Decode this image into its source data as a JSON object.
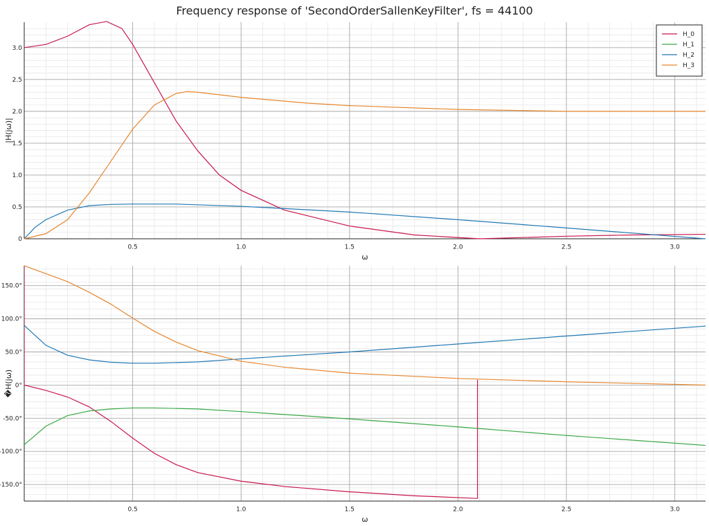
{
  "title": "Frequency response of 'SecondOrderSallenKeyFilter', fs = 44100",
  "colors": {
    "H_0": "#c8174b",
    "H_1": "#3aa845",
    "H_2": "#1f78b4",
    "H_3": "#e6862e",
    "grid_major": "#a9a9a9",
    "grid_minor": "#e3e3e3"
  },
  "chart_data": [
    {
      "type": "line",
      "xlabel": "ω",
      "ylabel": "|H(jω)|",
      "xlim": [
        0,
        3.14159
      ],
      "ylim": [
        0,
        3.4
      ],
      "xticks": [
        0.5,
        1.0,
        1.5,
        2.0,
        2.5,
        3.0
      ],
      "xtick_labels": [
        "0.5",
        "1.0",
        "1.5",
        "2.0",
        "2.5",
        "3.0"
      ],
      "yticks": [
        0,
        0.5,
        1.0,
        1.5,
        2.0,
        2.5,
        3.0
      ],
      "ytick_labels": [
        "0",
        "0.5",
        "1.0",
        "1.5",
        "2.0",
        "2.5",
        "3.0"
      ],
      "grid": true,
      "legend": "top-right",
      "series": [
        {
          "name": "H_0",
          "x": [
            0,
            0.1,
            0.2,
            0.3,
            0.38,
            0.45,
            0.5,
            0.6,
            0.7,
            0.8,
            0.9,
            1.0,
            1.2,
            1.5,
            1.8,
            2.1,
            2.5,
            2.8,
            3.14159
          ],
          "y": [
            3.0,
            3.05,
            3.18,
            3.36,
            3.41,
            3.3,
            3.05,
            2.45,
            1.85,
            1.38,
            1.0,
            0.76,
            0.45,
            0.2,
            0.06,
            0.0,
            0.04,
            0.06,
            0.07
          ]
        },
        {
          "name": "H_2",
          "x": [
            0,
            0.05,
            0.1,
            0.2,
            0.3,
            0.4,
            0.5,
            0.7,
            1.0,
            1.5,
            2.0,
            2.5,
            2.8,
            3.14159
          ],
          "y": [
            0.0,
            0.18,
            0.3,
            0.45,
            0.52,
            0.54,
            0.545,
            0.545,
            0.51,
            0.42,
            0.3,
            0.17,
            0.09,
            0.0
          ]
        },
        {
          "name": "H_3",
          "x": [
            0,
            0.1,
            0.2,
            0.3,
            0.4,
            0.5,
            0.6,
            0.7,
            0.75,
            0.8,
            1.0,
            1.3,
            1.5,
            2.0,
            2.5,
            3.14159
          ],
          "y": [
            0.0,
            0.08,
            0.3,
            0.72,
            1.22,
            1.72,
            2.1,
            2.28,
            2.31,
            2.3,
            2.22,
            2.13,
            2.09,
            2.03,
            2.0,
            2.0
          ]
        }
      ]
    },
    {
      "type": "line",
      "xlabel": "ω",
      "ylabel": "�H(jω)",
      "xlim": [
        0,
        3.14159
      ],
      "ylim": [
        -175,
        180
      ],
      "xticks": [
        0.5,
        1.0,
        1.5,
        2.0,
        2.5,
        3.0
      ],
      "xtick_labels": [
        "0.5",
        "1.0",
        "1.5",
        "2.0",
        "2.5",
        "3.0"
      ],
      "yticks": [
        -150,
        -100,
        -50,
        0,
        50,
        100,
        150
      ],
      "ytick_labels": [
        "-150.0°",
        "-100.0°",
        "-50.0°",
        "0°",
        "50.0°",
        "100.0°",
        "150.0°"
      ],
      "grid": true,
      "series": [
        {
          "name": "H_0",
          "x": [
            0,
            0.0001,
            0.1,
            0.2,
            0.3,
            0.4,
            0.5,
            0.6,
            0.7,
            0.8,
            1.0,
            1.2,
            1.5,
            1.8,
            2.09,
            2.09,
            2.09
          ],
          "y": [
            180,
            0,
            -8,
            -18,
            -33,
            -55,
            -80,
            -103,
            -120,
            -132,
            -145,
            -153,
            -161,
            -167,
            -171,
            8,
            -171
          ]
        },
        {
          "name": "H_1",
          "x": [
            0,
            0.1,
            0.2,
            0.3,
            0.4,
            0.5,
            0.6,
            0.8,
            1.0,
            1.5,
            2.0,
            2.5,
            3.14159
          ],
          "y": [
            -90,
            -62,
            -46,
            -39,
            -36,
            -34.5,
            -34.5,
            -36,
            -40,
            -51,
            -63,
            -76,
            -91
          ]
        },
        {
          "name": "H_2",
          "x": [
            0,
            0.1,
            0.2,
            0.3,
            0.4,
            0.5,
            0.6,
            0.8,
            1.0,
            1.5,
            2.0,
            2.5,
            3.14159
          ],
          "y": [
            90,
            60,
            45,
            38,
            34.5,
            33,
            33,
            35,
            39.5,
            50,
            62,
            74,
            89
          ]
        },
        {
          "name": "H_3",
          "x": [
            0,
            0.1,
            0.2,
            0.3,
            0.4,
            0.5,
            0.6,
            0.7,
            0.8,
            1.0,
            1.2,
            1.5,
            2.0,
            2.5,
            3.14159
          ],
          "y": [
            180,
            168,
            156,
            140,
            122,
            101,
            81,
            65,
            52,
            36,
            27,
            18,
            10,
            5,
            0
          ]
        }
      ]
    }
  ],
  "legend": {
    "entries": [
      "H_0",
      "H_1",
      "H_2",
      "H_3"
    ]
  }
}
